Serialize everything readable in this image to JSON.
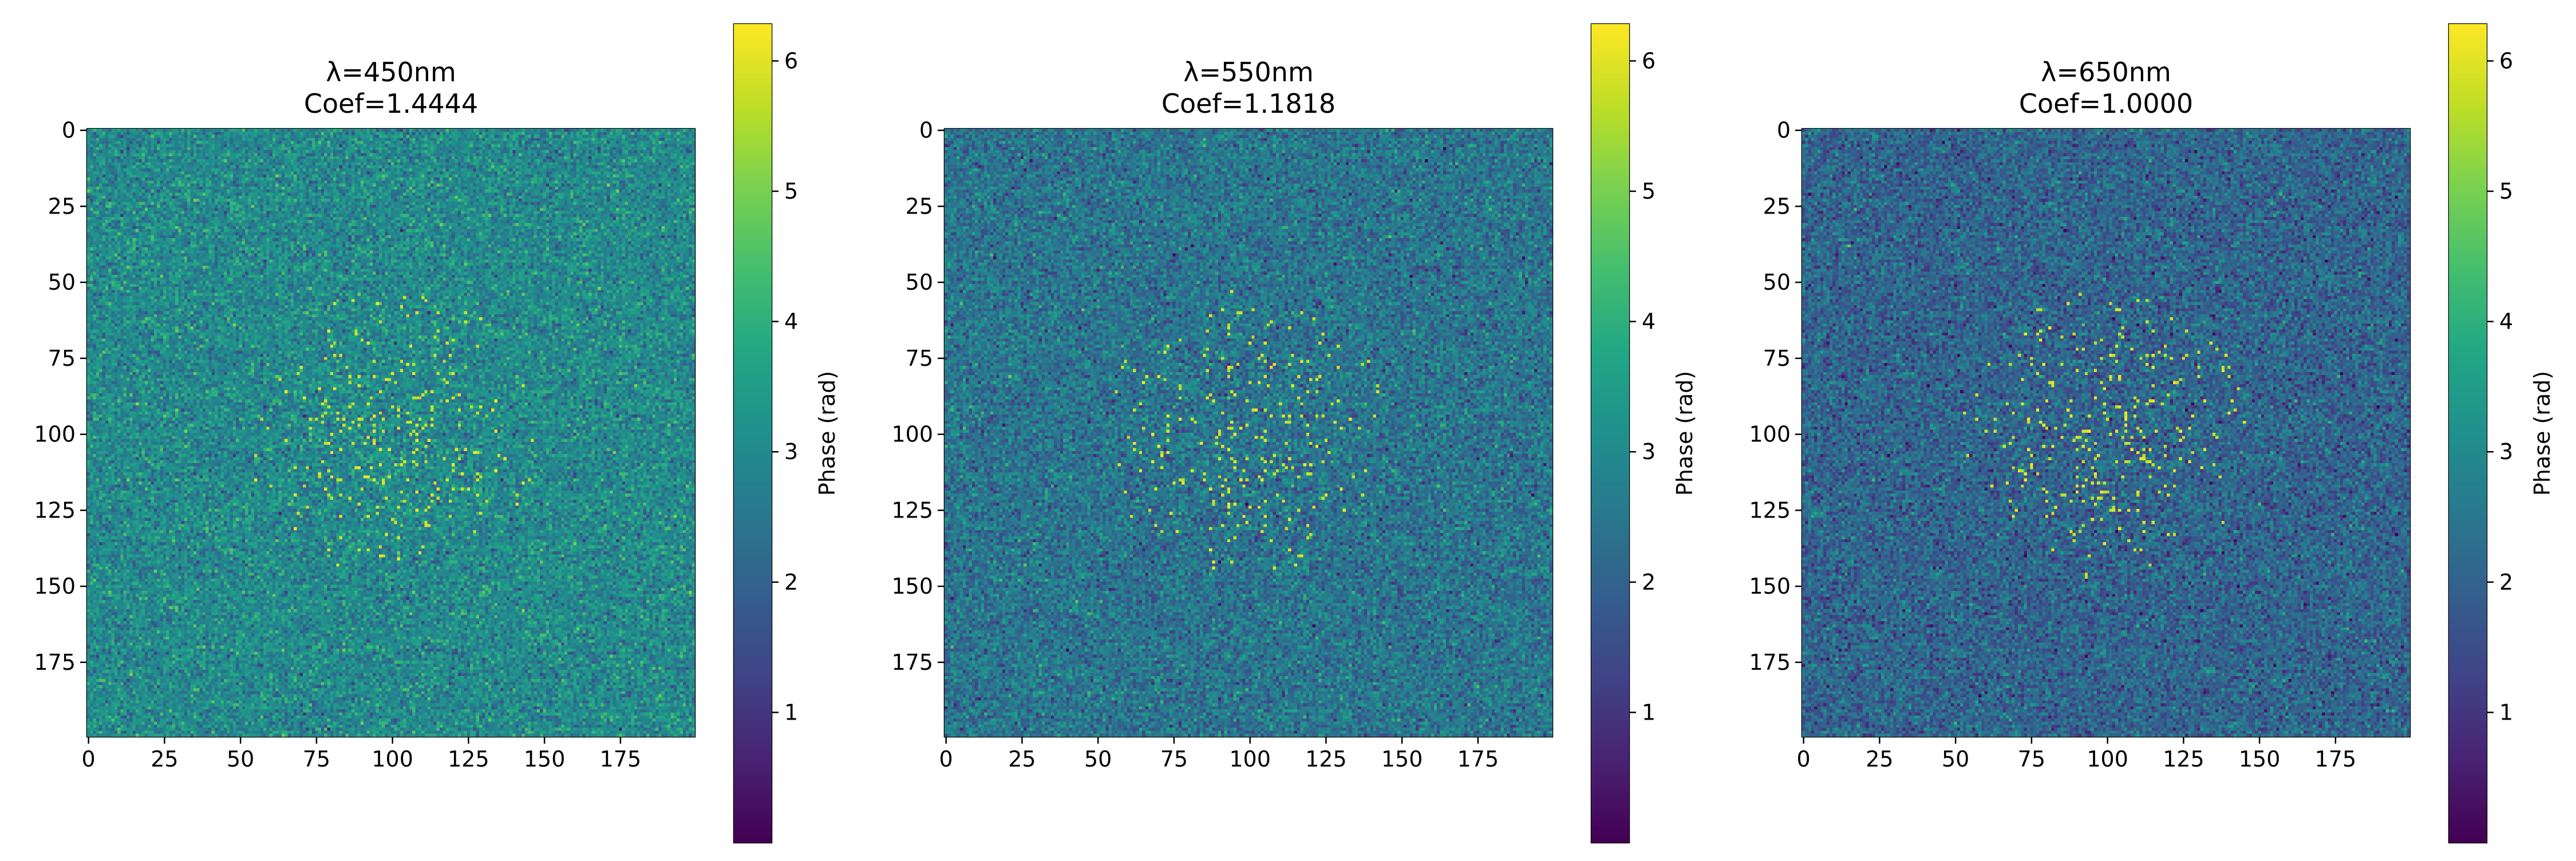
{
  "chart_data": [
    {
      "type": "heatmap",
      "title_lines": [
        "λ=450nm",
        "Coef=1.4444"
      ],
      "grid_size": [
        200,
        200
      ],
      "x_ticks": [
        0,
        25,
        50,
        75,
        100,
        125,
        150,
        175
      ],
      "y_ticks": [
        0,
        25,
        50,
        75,
        100,
        125,
        150,
        175
      ],
      "xlim": [
        0,
        199
      ],
      "ylim": [
        199,
        0
      ],
      "colormap": "viridis",
      "colorbar_label": "Phase (rad)",
      "colorbar_range": [
        0,
        6.2832
      ],
      "colorbar_ticks": [
        1,
        2,
        3,
        4,
        5,
        6
      ],
      "background_mean_phase": 3.0,
      "central_region_pattern": "scattered bright yellow speckles around (100, 100)"
    },
    {
      "type": "heatmap",
      "title_lines": [
        "λ=550nm",
        "Coef=1.1818"
      ],
      "grid_size": [
        200,
        200
      ],
      "x_ticks": [
        0,
        25,
        50,
        75,
        100,
        125,
        150,
        175
      ],
      "y_ticks": [
        0,
        25,
        50,
        75,
        100,
        125,
        150,
        175
      ],
      "xlim": [
        0,
        199
      ],
      "ylim": [
        199,
        0
      ],
      "colormap": "viridis",
      "colorbar_label": "Phase (rad)",
      "colorbar_range": [
        0,
        6.2832
      ],
      "colorbar_ticks": [
        1,
        2,
        3,
        4,
        5,
        6
      ],
      "background_mean_phase": 2.45,
      "central_region_pattern": "scattered bright yellow speckles around (100, 100)"
    },
    {
      "type": "heatmap",
      "title_lines": [
        "λ=650nm",
        "Coef=1.0000"
      ],
      "grid_size": [
        200,
        200
      ],
      "x_ticks": [
        0,
        25,
        50,
        75,
        100,
        125,
        150,
        175
      ],
      "y_ticks": [
        0,
        25,
        50,
        75,
        100,
        125,
        150,
        175
      ],
      "xlim": [
        0,
        199
      ],
      "ylim": [
        199,
        0
      ],
      "colormap": "viridis",
      "colorbar_label": "Phase (rad)",
      "colorbar_range": [
        0,
        6.2832
      ],
      "colorbar_ticks": [
        1,
        2,
        3,
        4,
        5,
        6
      ],
      "background_mean_phase": 2.05,
      "central_region_pattern": "scattered bright yellow speckles around (100, 100)"
    }
  ]
}
